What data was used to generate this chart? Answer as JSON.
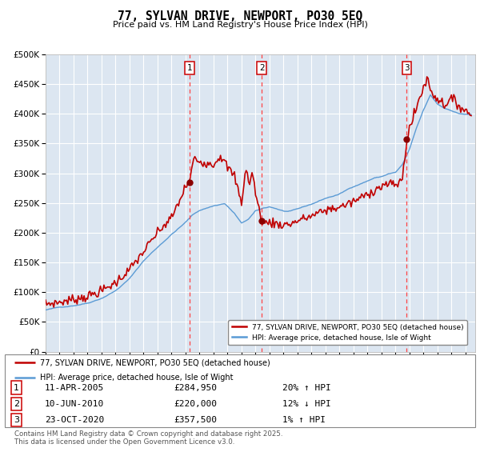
{
  "title": "77, SYLVAN DRIVE, NEWPORT, PO30 5EQ",
  "subtitle": "Price paid vs. HM Land Registry's House Price Index (HPI)",
  "legend_line1": "77, SYLVAN DRIVE, NEWPORT, PO30 5EQ (detached house)",
  "legend_line2": "HPI: Average price, detached house, Isle of Wight",
  "transactions": [
    {
      "num": 1,
      "date": "11-APR-2005",
      "price": 284950,
      "pct": "20%",
      "dir": "↑"
    },
    {
      "num": 2,
      "date": "10-JUN-2010",
      "price": 220000,
      "pct": "12%",
      "dir": "↓"
    },
    {
      "num": 3,
      "date": "23-OCT-2020",
      "price": 357500,
      "pct": "1%",
      "dir": "↑"
    }
  ],
  "transaction_dates_decimal": [
    2005.275,
    2010.44,
    2020.81
  ],
  "transaction_prices": [
    284950,
    220000,
    357500
  ],
  "footnote": "Contains HM Land Registry data © Crown copyright and database right 2025.\nThis data is licensed under the Open Government Licence v3.0.",
  "hpi_color": "#5b9bd5",
  "price_color": "#c00000",
  "marker_color": "#8b0000",
  "dashed_color": "#ff4444",
  "background_color": "#ffffff",
  "plot_bg_color": "#dce6f1",
  "grid_color": "#ffffff",
  "ylim": [
    0,
    500000
  ],
  "yticks": [
    0,
    50000,
    100000,
    150000,
    200000,
    250000,
    300000,
    350000,
    400000,
    450000,
    500000
  ],
  "xlim_start": 1995.0,
  "xlim_end": 2025.7
}
